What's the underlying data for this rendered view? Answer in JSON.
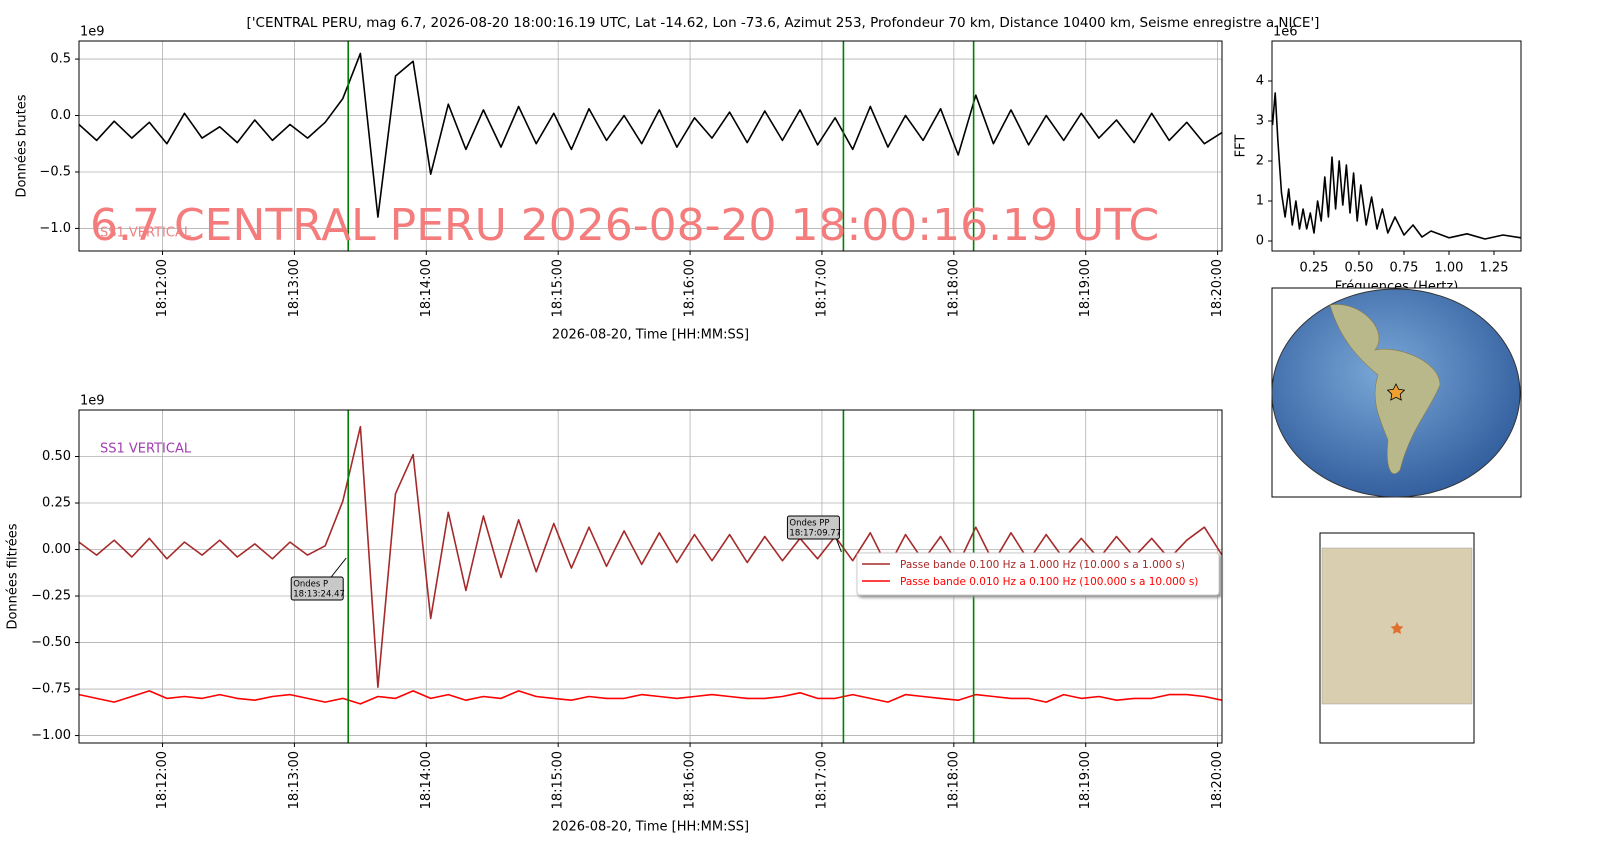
{
  "title": "['CENTRAL PERU, mag 6.7, 2026-08-20 18:00:16.19 UTC, Lat -14.62, Lon -73.6, Azimut 253, Profondeur 70 km, Distance 10400 km, Seisme enregistre a NICE']",
  "chart_data": [
    {
      "type": "line",
      "ylabel": "Données brutes",
      "xlabel": "2026-08-20, Time [HH:MM:SS]",
      "y_offset": "1e9",
      "watermark": "6.7 CENTRAL PERU 2026-08-20 18:00:16.19 UTC",
      "station": "SS1 VERTICAL",
      "x": [
        "18:11:22",
        "18:11:30",
        "18:11:38",
        "18:11:46",
        "18:11:54",
        "18:12:02",
        "18:12:10",
        "18:12:18",
        "18:12:26",
        "18:12:34",
        "18:12:42",
        "18:12:50",
        "18:12:58",
        "18:13:06",
        "18:13:14",
        "18:13:22",
        "18:13:30",
        "18:13:38",
        "18:13:46",
        "18:13:54",
        "18:14:02",
        "18:14:10",
        "18:14:18",
        "18:14:26",
        "18:14:34",
        "18:14:42",
        "18:14:50",
        "18:14:58",
        "18:15:06",
        "18:15:14",
        "18:15:22",
        "18:15:30",
        "18:15:38",
        "18:15:46",
        "18:15:54",
        "18:16:02",
        "18:16:10",
        "18:16:18",
        "18:16:26",
        "18:16:34",
        "18:16:42",
        "18:16:50",
        "18:16:58",
        "18:17:06",
        "18:17:14",
        "18:17:22",
        "18:17:30",
        "18:17:38",
        "18:17:46",
        "18:17:54",
        "18:18:02",
        "18:18:10",
        "18:18:18",
        "18:18:26",
        "18:18:34",
        "18:18:42",
        "18:18:50",
        "18:18:58",
        "18:19:06",
        "18:19:14",
        "18:19:22",
        "18:19:30",
        "18:19:38",
        "18:19:46",
        "18:19:54",
        "18:20:02"
      ],
      "series": [
        {
          "color": "#000000",
          "values": [
            -0.08,
            -0.22,
            -0.05,
            -0.2,
            -0.06,
            -0.25,
            0.02,
            -0.2,
            -0.1,
            -0.24,
            -0.04,
            -0.22,
            -0.08,
            -0.2,
            -0.06,
            0.15,
            0.55,
            -0.9,
            0.35,
            0.48,
            -0.52,
            0.1,
            -0.3,
            0.05,
            -0.28,
            0.08,
            -0.25,
            0.02,
            -0.3,
            0.06,
            -0.22,
            0.0,
            -0.25,
            0.05,
            -0.28,
            -0.02,
            -0.2,
            0.03,
            -0.24,
            0.04,
            -0.22,
            0.05,
            -0.26,
            -0.02,
            -0.3,
            0.08,
            -0.28,
            0.0,
            -0.22,
            0.06,
            -0.35,
            0.18,
            -0.25,
            0.05,
            -0.26,
            0.0,
            -0.22,
            0.02,
            -0.2,
            -0.04,
            -0.24,
            0.02,
            -0.22,
            -0.06,
            -0.25,
            -0.15
          ]
        }
      ],
      "xlim": [
        "18:11:22",
        "18:20:02"
      ],
      "xticks": [
        "18:12:00",
        "18:13:00",
        "18:14:00",
        "18:15:00",
        "18:16:00",
        "18:17:00",
        "18:18:00",
        "18:19:00",
        "18:20:00"
      ],
      "ylim": [
        -1.2,
        0.66
      ],
      "yticks": [
        0.5,
        {
          "value": 0.0,
          "label": "0.0"
        },
        {
          "value": -0.5,
          "label": "−0.5"
        },
        {
          "value": -1.0,
          "label": "−1.0"
        }
      ],
      "vlines": [
        "18:13:24.47",
        "18:17:09.77",
        "18:18:09"
      ],
      "vline_color": "#008000",
      "grid": true
    },
    {
      "type": "line",
      "ylabel": "Données filtrées",
      "xlabel": "2026-08-20, Time [HH:MM:SS]",
      "y_offset": "1e9",
      "station": "SS1 VERTICAL",
      "x": [
        "18:11:22",
        "18:11:30",
        "18:11:38",
        "18:11:46",
        "18:11:54",
        "18:12:02",
        "18:12:10",
        "18:12:18",
        "18:12:26",
        "18:12:34",
        "18:12:42",
        "18:12:50",
        "18:12:58",
        "18:13:06",
        "18:13:14",
        "18:13:22",
        "18:13:30",
        "18:13:38",
        "18:13:46",
        "18:13:54",
        "18:14:02",
        "18:14:10",
        "18:14:18",
        "18:14:26",
        "18:14:34",
        "18:14:42",
        "18:14:50",
        "18:14:58",
        "18:15:06",
        "18:15:14",
        "18:15:22",
        "18:15:30",
        "18:15:38",
        "18:15:46",
        "18:15:54",
        "18:16:02",
        "18:16:10",
        "18:16:18",
        "18:16:26",
        "18:16:34",
        "18:16:42",
        "18:16:50",
        "18:16:58",
        "18:17:06",
        "18:17:14",
        "18:17:22",
        "18:17:30",
        "18:17:38",
        "18:17:46",
        "18:17:54",
        "18:18:02",
        "18:18:10",
        "18:18:18",
        "18:18:26",
        "18:18:34",
        "18:18:42",
        "18:18:50",
        "18:18:58",
        "18:19:06",
        "18:19:14",
        "18:19:22",
        "18:19:30",
        "18:19:38",
        "18:19:46",
        "18:19:54",
        "18:20:02"
      ],
      "series": [
        {
          "name": "Passe bande 0.100 Hz a 1.000 Hz (10.000 s a 1.000 s)",
          "color": "#a52a2a",
          "values": [
            0.04,
            -0.03,
            0.05,
            -0.04,
            0.06,
            -0.05,
            0.04,
            -0.03,
            0.05,
            -0.04,
            0.03,
            -0.05,
            0.04,
            -0.03,
            0.02,
            0.26,
            0.66,
            -0.74,
            0.3,
            0.51,
            -0.37,
            0.2,
            -0.22,
            0.18,
            -0.15,
            0.16,
            -0.12,
            0.14,
            -0.1,
            0.12,
            -0.09,
            0.1,
            -0.08,
            0.09,
            -0.07,
            0.08,
            -0.06,
            0.08,
            -0.07,
            0.07,
            -0.06,
            0.06,
            -0.05,
            0.07,
            -0.06,
            0.09,
            -0.1,
            0.08,
            -0.06,
            0.07,
            -0.08,
            0.12,
            -0.07,
            0.09,
            -0.06,
            0.08,
            -0.05,
            0.06,
            -0.05,
            0.07,
            -0.04,
            0.06,
            -0.05,
            0.05,
            0.12,
            -0.03
          ]
        },
        {
          "name": "Passe bande 0.010 Hz a 0.100 Hz (100.000 s a 10.000 s)",
          "color": "#ff0000",
          "values": [
            -0.78,
            -0.8,
            -0.82,
            -0.79,
            -0.76,
            -0.8,
            -0.79,
            -0.8,
            -0.78,
            -0.8,
            -0.81,
            -0.79,
            -0.78,
            -0.8,
            -0.82,
            -0.8,
            -0.83,
            -0.79,
            -0.8,
            -0.76,
            -0.8,
            -0.78,
            -0.81,
            -0.79,
            -0.8,
            -0.76,
            -0.79,
            -0.8,
            -0.81,
            -0.79,
            -0.8,
            -0.8,
            -0.78,
            -0.79,
            -0.8,
            -0.79,
            -0.78,
            -0.79,
            -0.8,
            -0.8,
            -0.79,
            -0.77,
            -0.8,
            -0.8,
            -0.78,
            -0.8,
            -0.82,
            -0.78,
            -0.79,
            -0.8,
            -0.81,
            -0.78,
            -0.79,
            -0.8,
            -0.8,
            -0.82,
            -0.78,
            -0.8,
            -0.79,
            -0.81,
            -0.8,
            -0.8,
            -0.78,
            -0.78,
            -0.79,
            -0.81
          ]
        }
      ],
      "xlim": [
        "18:11:22",
        "18:20:02"
      ],
      "xticks": [
        "18:12:00",
        "18:13:00",
        "18:14:00",
        "18:15:00",
        "18:16:00",
        "18:17:00",
        "18:18:00",
        "18:19:00",
        "18:20:00"
      ],
      "ylim": [
        -1.04,
        0.75
      ],
      "yticks": [
        {
          "value": 0.5,
          "label": "0.50"
        },
        0.25,
        {
          "value": 0.0,
          "label": "0.00"
        },
        {
          "value": -0.25,
          "label": "−0.25"
        },
        {
          "value": -0.5,
          "label": "−0.50"
        },
        {
          "value": -0.75,
          "label": "−0.75"
        },
        {
          "value": -1.0,
          "label": "−1.00"
        }
      ],
      "annotations": [
        {
          "label": "Ondes P",
          "x": "18:13:24.47"
        },
        {
          "label": "Ondes PP",
          "x": "18:17:09.77"
        }
      ],
      "vlines": [
        "18:18:09"
      ],
      "vline_color": "#008000",
      "grid": true,
      "legend": "right"
    },
    {
      "type": "line",
      "ylabel": "FFT",
      "xlabel": "Fréquences (Hertz)",
      "y_offset": "1e6",
      "x": [
        0.02,
        0.035,
        0.05,
        0.07,
        0.09,
        0.11,
        0.13,
        0.15,
        0.17,
        0.19,
        0.21,
        0.23,
        0.25,
        0.27,
        0.29,
        0.31,
        0.33,
        0.35,
        0.37,
        0.39,
        0.41,
        0.43,
        0.45,
        0.47,
        0.49,
        0.51,
        0.54,
        0.57,
        0.6,
        0.63,
        0.66,
        0.7,
        0.75,
        0.8,
        0.85,
        0.9,
        1.0,
        1.1,
        1.2,
        1.3,
        1.4
      ],
      "series": [
        {
          "color": "#000000",
          "values": [
            2.9,
            3.7,
            2.5,
            1.2,
            0.6,
            1.3,
            0.4,
            1.0,
            0.3,
            0.8,
            0.3,
            0.7,
            0.2,
            1.0,
            0.5,
            1.6,
            0.6,
            2.1,
            0.8,
            2.0,
            0.9,
            1.9,
            0.7,
            1.7,
            0.5,
            1.4,
            0.4,
            1.1,
            0.3,
            0.8,
            0.2,
            0.6,
            0.15,
            0.4,
            0.1,
            0.25,
            0.08,
            0.18,
            0.05,
            0.15,
            0.08
          ]
        }
      ],
      "xlim": [
        0.017,
        1.4
      ],
      "xticks": [
        0.25,
        {
          "value": 0.5,
          "label": "0.50"
        },
        0.75,
        {
          "value": 1.0,
          "label": "1.00"
        },
        1.25
      ],
      "ylim": [
        -0.25,
        5.0
      ],
      "yticks": [
        0,
        1,
        2,
        3,
        4
      ],
      "grid": false
    }
  ]
}
